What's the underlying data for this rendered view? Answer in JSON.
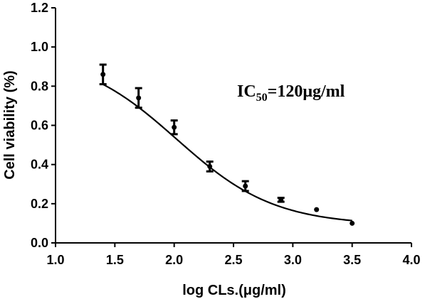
{
  "chart_data": {
    "type": "scatter",
    "title": "",
    "xlabel": "log CLs.(μg/ml)",
    "ylabel": "Cell viability (%)",
    "xlim": [
      1.0,
      4.0
    ],
    "ylim": [
      0.0,
      1.2
    ],
    "x_ticks": [
      "1.0",
      "1.5",
      "2.0",
      "2.5",
      "3.0",
      "3.5",
      "4.0"
    ],
    "y_ticks": [
      "0.0",
      "0.2",
      "0.4",
      "0.6",
      "0.8",
      "1.0",
      "1.2"
    ],
    "grid": false,
    "legend": "none",
    "annotation": {
      "main": "IC",
      "sub": "50",
      "rest": "=120μg/ml"
    },
    "series": [
      {
        "points": [
          {
            "x": 1.4,
            "y": 0.86,
            "err": 0.05
          },
          {
            "x": 1.7,
            "y": 0.74,
            "err": 0.05
          },
          {
            "x": 2.0,
            "y": 0.59,
            "err": 0.035
          },
          {
            "x": 2.3,
            "y": 0.39,
            "err": 0.025
          },
          {
            "x": 2.6,
            "y": 0.29,
            "err": 0.025
          },
          {
            "x": 2.9,
            "y": 0.22,
            "err": 0.01
          },
          {
            "x": 3.2,
            "y": 0.17,
            "err": 0.0
          },
          {
            "x": 3.5,
            "y": 0.1,
            "err": 0.0
          }
        ],
        "fit": {
          "type": "sigmoidal-dose-response",
          "top": 0.97,
          "bottom": 0.09,
          "logIC50": 2.02,
          "hill": -1.05,
          "x_range": [
            1.4,
            3.5
          ]
        }
      }
    ]
  }
}
